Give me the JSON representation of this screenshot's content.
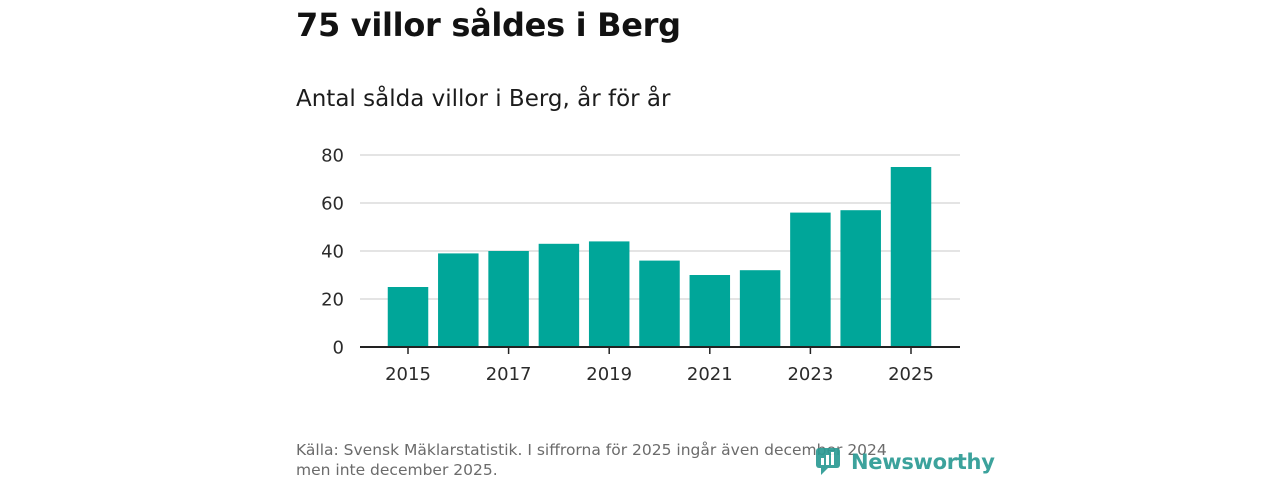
{
  "header": {
    "title": "75 villor såldes i Berg",
    "subtitle": "Antal sålda villor i Berg, år för år"
  },
  "footer": {
    "source_line1": "Källa: Svensk Mäklarstatistik. I siffrorna för 2025 ingår även december 2024",
    "source_line2": "men inte december 2025.",
    "brand": "Newsworthy",
    "brand_icon": "newsworthy-logo-icon"
  },
  "colors": {
    "bar": "#00a699",
    "grid": "#dcdcdc",
    "axis": "#222222",
    "brand": "#2c9b94"
  },
  "chart_data": {
    "type": "bar",
    "title": "75 villor såldes i Berg",
    "subtitle": "Antal sålda villor i Berg, år för år",
    "xlabel": "",
    "ylabel": "",
    "grid": true,
    "legend": "none",
    "x": [
      2015,
      2016,
      2017,
      2018,
      2019,
      2020,
      2021,
      2022,
      2023,
      2024,
      2025
    ],
    "values": [
      25,
      39,
      40,
      43,
      44,
      36,
      30,
      32,
      56,
      57,
      75
    ],
    "x_tick_labels": [
      "2015",
      "2017",
      "2019",
      "2021",
      "2023",
      "2025"
    ],
    "y_ticks": [
      0,
      20,
      40,
      60,
      80
    ],
    "y_tick_labels": [
      "0",
      "20",
      "40",
      "60",
      "80"
    ],
    "ylim": [
      0,
      80
    ]
  }
}
